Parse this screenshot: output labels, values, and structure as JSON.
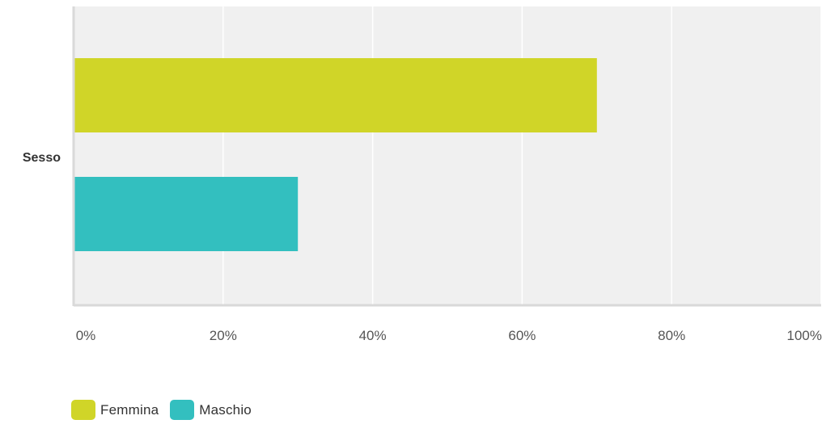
{
  "chart_data": {
    "type": "bar",
    "orientation": "horizontal",
    "categories": [
      "Sesso"
    ],
    "series": [
      {
        "name": "Femmina",
        "values": [
          70
        ],
        "color": "#d0d528"
      },
      {
        "name": "Maschio",
        "values": [
          30
        ],
        "color": "#33bfbf"
      }
    ],
    "xlim": [
      0,
      100
    ],
    "x_ticks": [
      0,
      20,
      40,
      60,
      80,
      100
    ],
    "x_tick_labels": [
      "0%",
      "20%",
      "40%",
      "60%",
      "80%",
      "100%"
    ],
    "grid": true,
    "legend_position": "bottom-left",
    "plot_background": "#f0f0f0",
    "grid_color": "#ffffff",
    "axis_color": "#d9d9d9"
  }
}
